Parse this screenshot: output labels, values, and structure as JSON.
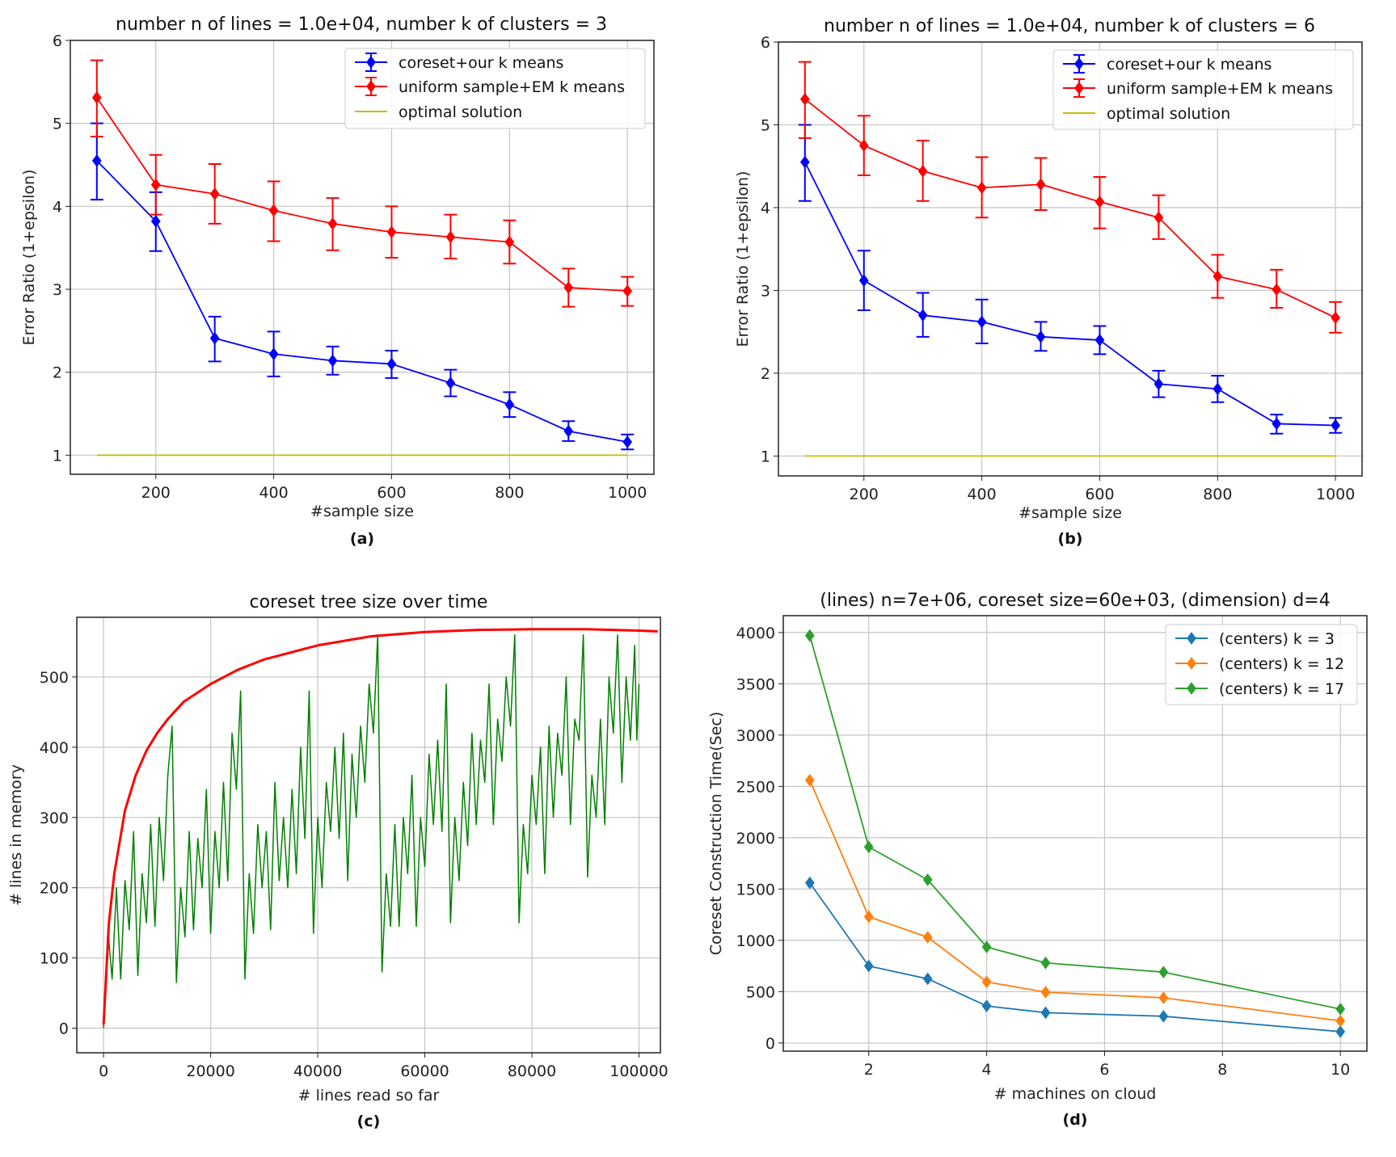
{
  "chart_data": [
    {
      "type": "line",
      "caption": "(a)",
      "title": "number n of lines = 1.0e+04, number k of clusters = 3",
      "xlabel": "#sample size",
      "ylabel": "Error Ratio (1+epsilon)",
      "xlim": [
        55,
        1045
      ],
      "ylim": [
        0.77,
        6
      ],
      "xticks": [
        200,
        400,
        600,
        800,
        1000
      ],
      "yticks": [
        1,
        2,
        3,
        4,
        5,
        6
      ],
      "grid": true,
      "legend_position": "top-right",
      "x": [
        100,
        200,
        300,
        400,
        500,
        600,
        700,
        800,
        900,
        1000
      ],
      "series": [
        {
          "name": "coreset+our k means",
          "color": "#0000ff",
          "marker": "diamond",
          "errorbars": true,
          "values": [
            4.55,
            3.82,
            2.41,
            2.22,
            2.14,
            2.1,
            1.87,
            1.61,
            1.29,
            1.16
          ],
          "lower": [
            4.08,
            3.46,
            2.13,
            1.95,
            1.97,
            1.93,
            1.71,
            1.46,
            1.17,
            1.07
          ],
          "upper": [
            5.0,
            4.17,
            2.67,
            2.49,
            2.31,
            2.26,
            2.03,
            1.76,
            1.41,
            1.25
          ]
        },
        {
          "name": "uniform sample+EM k means",
          "color": "#ff0000",
          "marker": "diamond",
          "errorbars": true,
          "values": [
            5.31,
            4.26,
            4.15,
            3.95,
            3.79,
            3.69,
            3.63,
            3.57,
            3.02,
            2.98
          ],
          "lower": [
            4.84,
            3.9,
            3.79,
            3.58,
            3.47,
            3.38,
            3.37,
            3.31,
            2.79,
            2.8
          ],
          "upper": [
            5.76,
            4.62,
            4.51,
            4.3,
            4.1,
            4.0,
            3.9,
            3.83,
            3.25,
            3.15
          ]
        },
        {
          "name": "optimal solution",
          "color": "#bfbf00",
          "marker": "none",
          "values": [
            1,
            1,
            1,
            1,
            1,
            1,
            1,
            1,
            1,
            1
          ]
        }
      ]
    },
    {
      "type": "line",
      "caption": "(b)",
      "title": "number n of lines = 1.0e+04, number k of clusters = 6",
      "xlabel": "#sample size",
      "ylabel": "Error Ratio (1+epsilon)",
      "xlim": [
        55,
        1045
      ],
      "ylim": [
        0.76,
        6
      ],
      "xticks": [
        200,
        400,
        600,
        800,
        1000
      ],
      "yticks": [
        1,
        2,
        3,
        4,
        5,
        6
      ],
      "grid": true,
      "legend_position": "top-right",
      "x": [
        100,
        200,
        300,
        400,
        500,
        600,
        700,
        800,
        900,
        1000
      ],
      "series": [
        {
          "name": "coreset+our k means",
          "color": "#0000ff",
          "marker": "diamond",
          "errorbars": true,
          "values": [
            4.55,
            3.12,
            2.7,
            2.62,
            2.44,
            2.4,
            1.87,
            1.81,
            1.39,
            1.37
          ],
          "lower": [
            4.08,
            2.76,
            2.44,
            2.36,
            2.27,
            2.23,
            1.71,
            1.65,
            1.27,
            1.28
          ],
          "upper": [
            5.0,
            3.48,
            2.97,
            2.89,
            2.62,
            2.57,
            2.03,
            1.97,
            1.5,
            1.46
          ]
        },
        {
          "name": "uniform sample+EM k means",
          "color": "#ff0000",
          "marker": "diamond",
          "errorbars": true,
          "values": [
            5.31,
            4.75,
            4.44,
            4.24,
            4.28,
            4.07,
            3.88,
            3.17,
            3.01,
            2.67
          ],
          "lower": [
            4.84,
            4.39,
            4.08,
            3.88,
            3.97,
            3.75,
            3.62,
            2.91,
            2.79,
            2.49
          ],
          "upper": [
            5.76,
            5.11,
            4.81,
            4.61,
            4.6,
            4.37,
            4.15,
            3.43,
            3.25,
            2.86
          ]
        },
        {
          "name": "optimal solution",
          "color": "#bfbf00",
          "marker": "none",
          "values": [
            1,
            1,
            1,
            1,
            1,
            1,
            1,
            1,
            1,
            1
          ]
        }
      ]
    },
    {
      "type": "line",
      "caption": "(c)",
      "title": "coreset tree size over time",
      "xlabel": "# lines read so far",
      "ylabel": "# lines in memory",
      "xlim": [
        -5000,
        104000
      ],
      "ylim": [
        -35,
        585
      ],
      "xticks": [
        0,
        20000,
        40000,
        60000,
        80000,
        100000
      ],
      "yticks": [
        0,
        100,
        200,
        300,
        400,
        500
      ],
      "grid": true,
      "series": [
        {
          "color": "#008000",
          "marker": "none",
          "width": 1.5,
          "x": [
            0,
            800,
            1600,
            2400,
            3200,
            4000,
            4800,
            5600,
            6400,
            7200,
            8000,
            8800,
            9600,
            10400,
            11200,
            12000,
            12800,
            13600,
            14400,
            15200,
            16000,
            16800,
            17600,
            18400,
            19200,
            20000,
            20800,
            21600,
            22400,
            23200,
            24000,
            24800,
            25600,
            26400,
            27200,
            28000,
            28800,
            29600,
            30400,
            31200,
            32000,
            32800,
            33600,
            34400,
            35200,
            36000,
            36800,
            37600,
            38400,
            39200,
            40000,
            40800,
            41600,
            42400,
            43200,
            44000,
            44800,
            45600,
            46400,
            47200,
            48000,
            48800,
            49600,
            50400,
            51200,
            52000,
            52800,
            53600,
            54400,
            55200,
            56000,
            56800,
            57600,
            58400,
            59200,
            60000,
            60800,
            61600,
            62400,
            63200,
            64000,
            64800,
            65600,
            66400,
            67200,
            68000,
            68800,
            69600,
            70400,
            71200,
            72000,
            72800,
            73600,
            74400,
            75200,
            76000,
            76800,
            77600,
            78400,
            79200,
            80000,
            80800,
            81600,
            82400,
            83200,
            84000,
            84800,
            85600,
            86400,
            87200,
            88000,
            88800,
            89600,
            90400,
            91200,
            92000,
            92800,
            93600,
            94400,
            95200,
            96000,
            96800,
            97600,
            98400,
            99200,
            99600,
            100000
          ],
          "values": [
            0,
            140,
            70,
            200,
            70,
            210,
            140,
            280,
            75,
            220,
            150,
            290,
            145,
            300,
            210,
            360,
            430,
            65,
            200,
            130,
            280,
            140,
            270,
            200,
            340,
            135,
            280,
            200,
            350,
            210,
            420,
            340,
            480,
            70,
            220,
            135,
            290,
            200,
            280,
            140,
            350,
            210,
            300,
            200,
            340,
            220,
            400,
            270,
            480,
            135,
            300,
            200,
            350,
            280,
            400,
            270,
            420,
            210,
            390,
            300,
            430,
            350,
            490,
            420,
            560,
            80,
            220,
            145,
            290,
            145,
            300,
            220,
            360,
            145,
            300,
            230,
            390,
            290,
            410,
            280,
            490,
            150,
            300,
            210,
            350,
            260,
            420,
            290,
            410,
            350,
            490,
            290,
            440,
            380,
            500,
            430,
            560,
            150,
            290,
            220,
            360,
            290,
            400,
            220,
            430,
            300,
            420,
            360,
            500,
            290,
            440,
            410,
            560,
            215,
            360,
            300,
            440,
            290,
            500,
            420,
            560,
            350,
            500,
            410,
            545,
            410,
            490
          ]
        },
        {
          "color": "#ff0000",
          "marker": "none",
          "width": 3,
          "x": [
            0,
            1000,
            2000,
            4000,
            6000,
            8000,
            10000,
            12000,
            15000,
            20000,
            25000,
            30000,
            40000,
            50000,
            60000,
            70000,
            80000,
            90000,
            100000,
            103500
          ],
          "values": [
            5,
            150,
            220,
            310,
            360,
            395,
            420,
            440,
            465,
            490,
            510,
            525,
            545,
            558,
            564,
            567,
            568,
            568,
            566,
            565
          ]
        }
      ]
    },
    {
      "type": "line",
      "caption": "(d)",
      "title": "(lines) n=7e+06, coreset size=60e+03, (dimension) d=4",
      "xlabel": "# machines on cloud",
      "ylabel": "Coreset Construction Time(Sec)",
      "xlim": [
        0.55,
        10.45
      ],
      "ylim": [
        -80,
        4164
      ],
      "xticks": [
        2,
        4,
        6,
        8,
        10
      ],
      "yticks": [
        0,
        500,
        1000,
        1500,
        2000,
        2500,
        3000,
        3500,
        4000
      ],
      "grid": true,
      "legend_position": "top-right",
      "x": [
        1,
        2,
        3,
        4,
        5,
        7,
        10
      ],
      "series": [
        {
          "name": "(centers) k = 3",
          "color": "#1f77b4",
          "marker": "diamond",
          "values": [
            1560,
            750,
            625,
            360,
            295,
            260,
            110
          ]
        },
        {
          "name": "(centers) k = 12",
          "color": "#ff7f0e",
          "marker": "diamond",
          "values": [
            2560,
            1230,
            1030,
            595,
            495,
            440,
            215
          ]
        },
        {
          "name": "(centers) k = 17",
          "color": "#2ca02c",
          "marker": "diamond",
          "values": [
            3970,
            1910,
            1590,
            935,
            780,
            690,
            330
          ]
        }
      ]
    }
  ]
}
